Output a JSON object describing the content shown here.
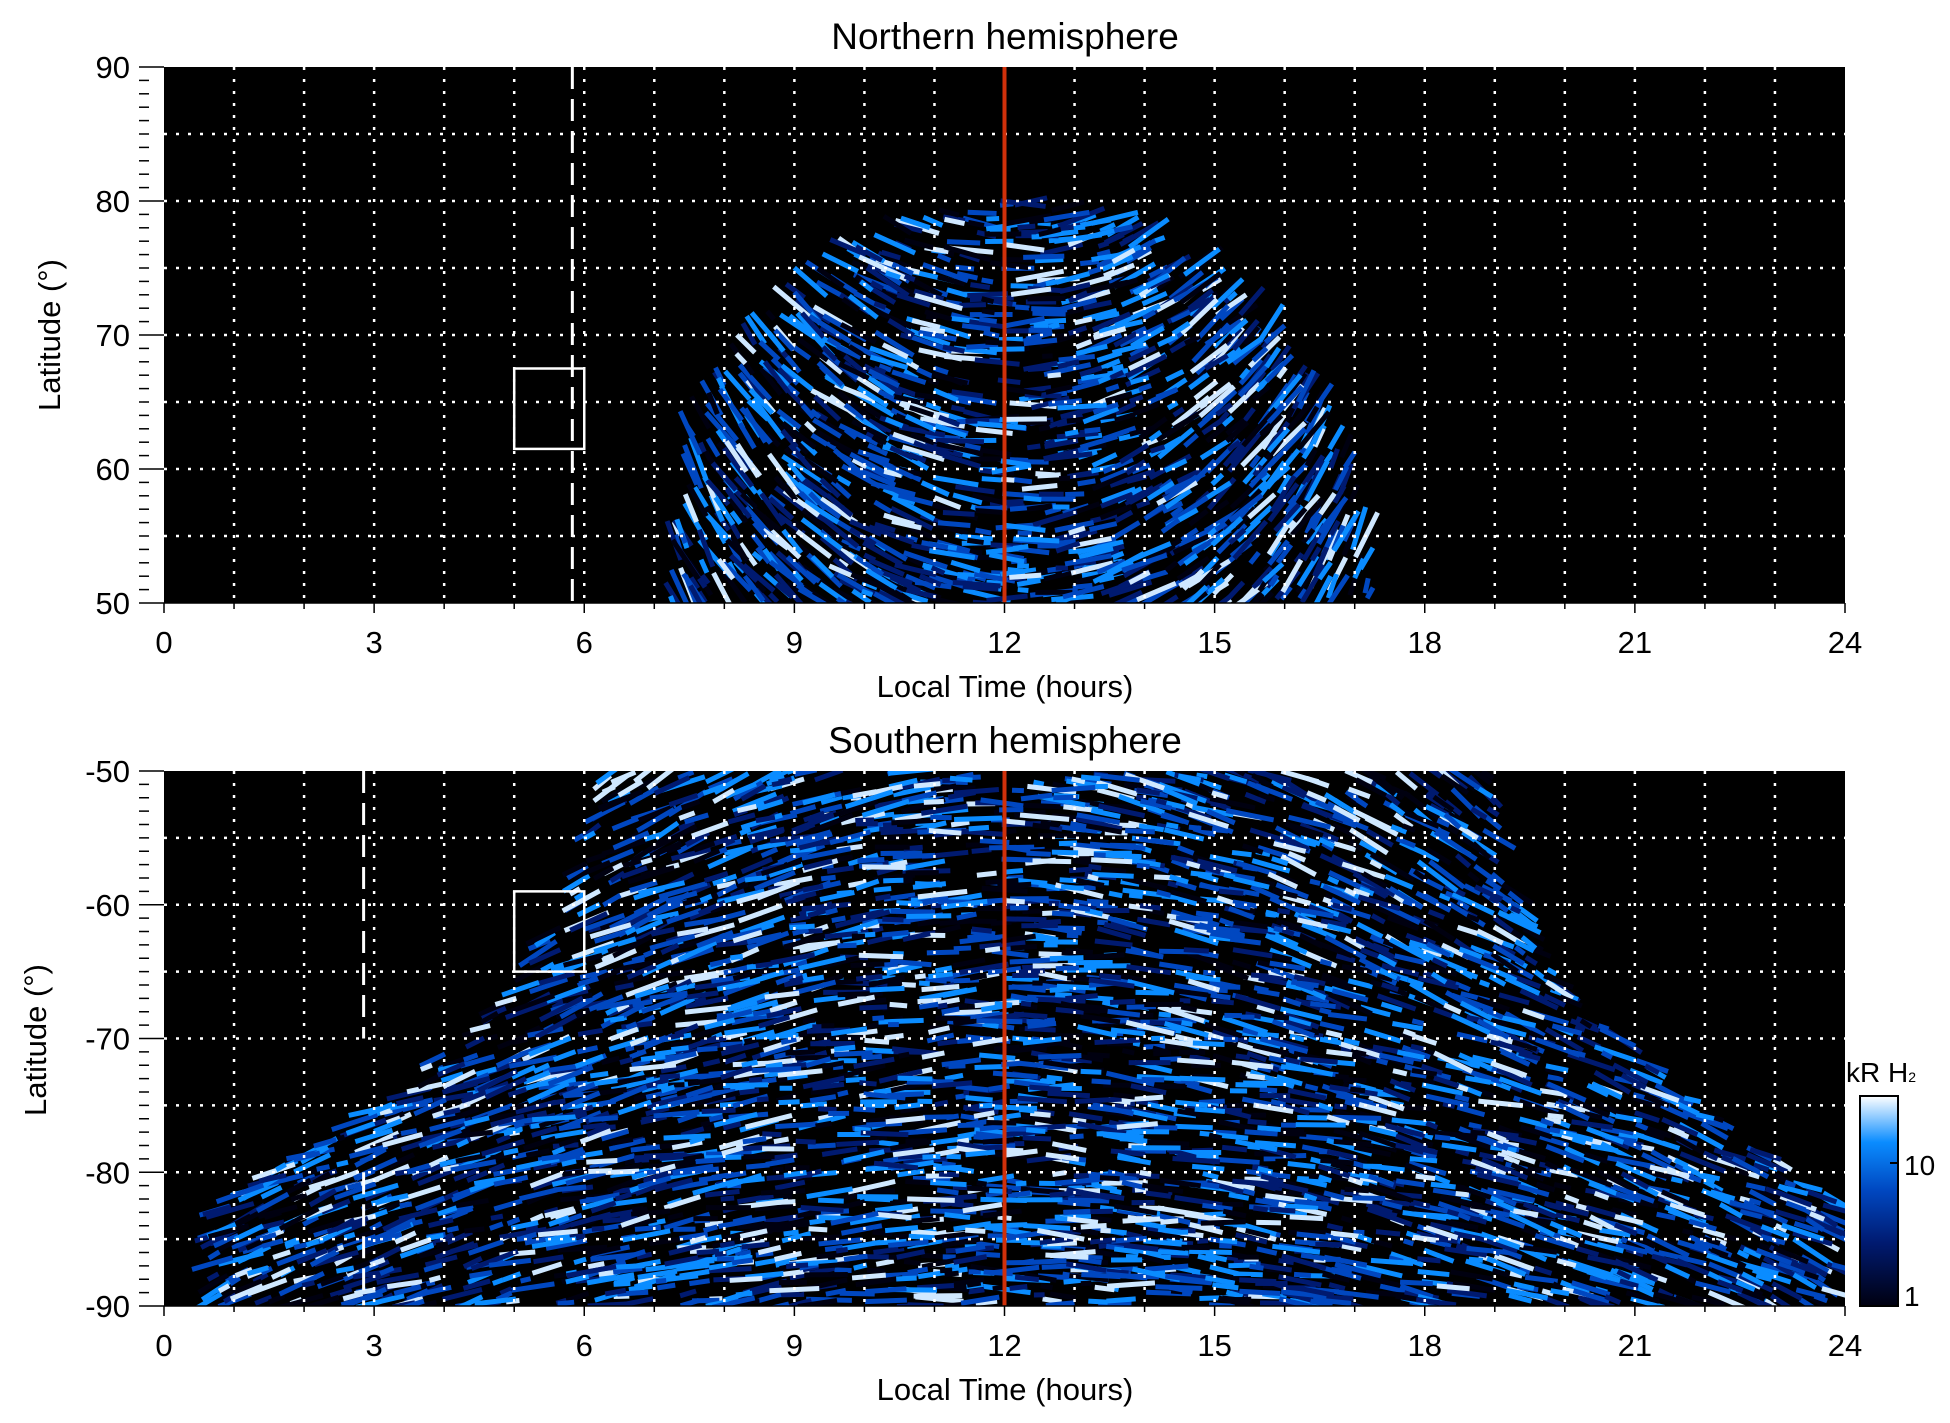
{
  "chart_data": [
    {
      "type": "heatmap",
      "title": "Northern hemisphere",
      "xlabel": "Local Time (hours)",
      "ylabel": "Latitude (°)",
      "xlim": [
        0,
        24
      ],
      "ylim": [
        50,
        90
      ],
      "xticks": [
        "0",
        "3",
        "6",
        "9",
        "12",
        "15",
        "18",
        "21",
        "24"
      ],
      "yticks": [
        "50",
        "60",
        "70",
        "80",
        "90"
      ],
      "grid": true,
      "emission_region": {
        "lt_range": [
          7.0,
          17.3
        ],
        "max_lat": 80
      },
      "red_line_lt": 12,
      "dashed_line": {
        "lt": 5.83,
        "lat_range": [
          50,
          90
        ]
      },
      "box": {
        "lt": [
          5,
          6
        ],
        "lat": [
          61.5,
          67.5
        ]
      }
    },
    {
      "type": "heatmap",
      "title": "Southern hemisphere",
      "xlabel": "Local Time (hours)",
      "ylabel": "Latitude (°)",
      "xlim": [
        0,
        24
      ],
      "ylim": [
        -90,
        -50
      ],
      "xticks": [
        "0",
        "3",
        "6",
        "9",
        "12",
        "15",
        "18",
        "21",
        "24"
      ],
      "yticks": [
        "-90",
        "-80",
        "-70",
        "-60",
        "-50"
      ],
      "grid": true,
      "emission_region": {
        "lt_range_at_minus50": [
          6,
          19
        ],
        "lt_range_at_minus83": [
          0,
          24
        ]
      },
      "red_line_lt": 12,
      "dashed_line": {
        "lt": 2.85,
        "lat_range": [
          -70,
          -50
        ]
      },
      "dashed_line_lower": {
        "lt": 2.85,
        "lat_range": [
          -90,
          -80
        ]
      },
      "box": {
        "lt": [
          5,
          6
        ],
        "lat": [
          -65,
          -59
        ]
      }
    }
  ],
  "colorbar": {
    "label": "kR H",
    "label_sub": "2",
    "ticks": [
      "1",
      "10"
    ],
    "range": [
      1,
      30
    ],
    "scale": "log",
    "colors": [
      "#000010",
      "#001a70",
      "#0047c0",
      "#0a8cff",
      "#ffffff"
    ]
  },
  "accent": {
    "red_line": "#d0300a",
    "grid": "#ffffff"
  }
}
